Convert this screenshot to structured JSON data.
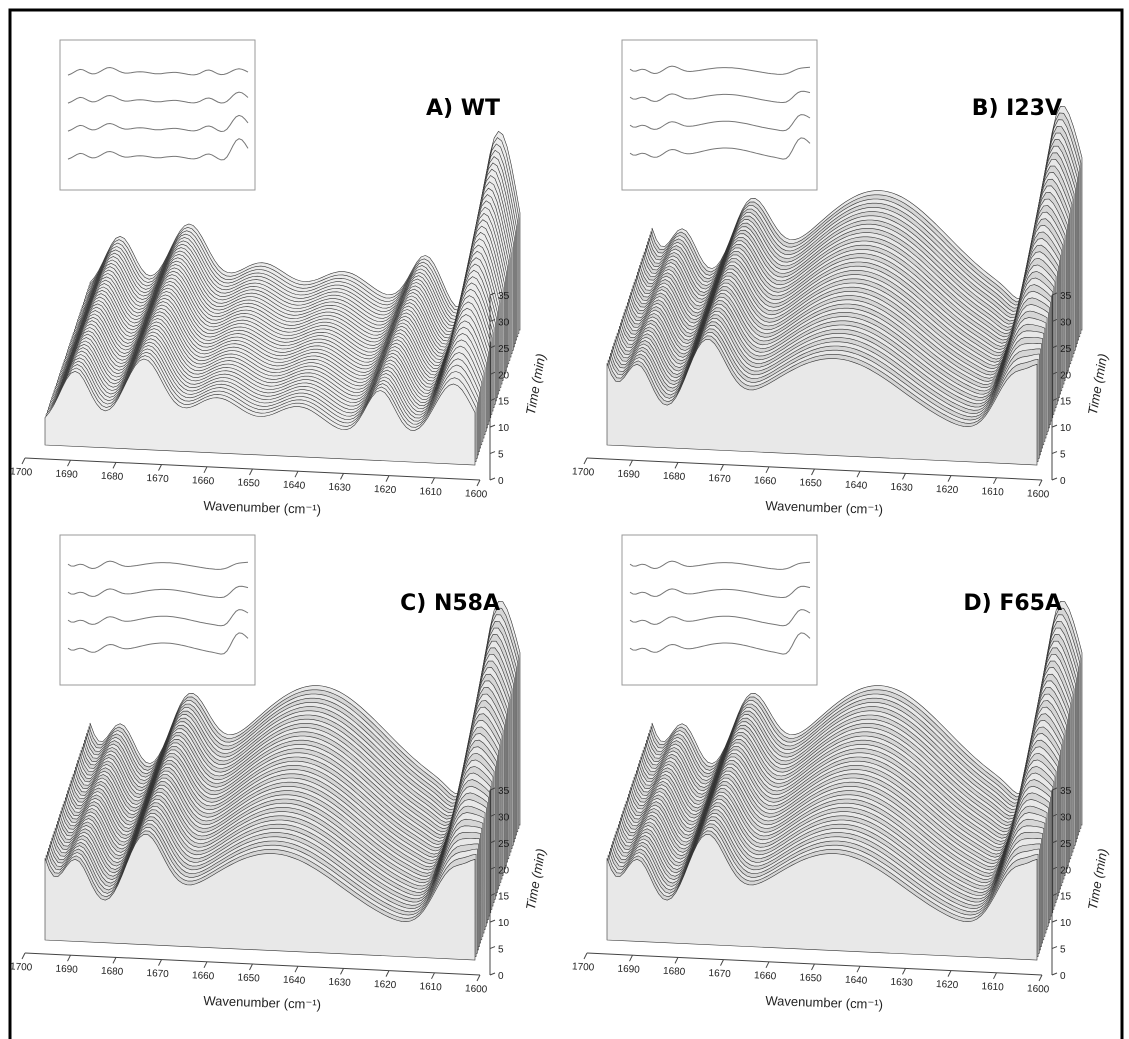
{
  "chart_data": [
    {
      "type": "surface",
      "title": "A) WT",
      "x_label": "Wavenumber (cm⁻¹)",
      "y_label": "Time (min)",
      "xlim": [
        1700,
        1600
      ],
      "xticks": [
        1700,
        1690,
        1680,
        1670,
        1660,
        1650,
        1640,
        1630,
        1620,
        1610,
        1600
      ],
      "ylim": [
        0,
        35
      ],
      "yticks": [
        0,
        5,
        10,
        15,
        20,
        25,
        30,
        35
      ]
    },
    {
      "type": "surface",
      "title": "B) I23V",
      "x_label": "Wavenumber (cm⁻¹)",
      "y_label": "Time (min)",
      "xlim": [
        1700,
        1600
      ],
      "xticks": [
        1700,
        1690,
        1680,
        1670,
        1660,
        1650,
        1640,
        1630,
        1620,
        1610,
        1600
      ],
      "ylim": [
        0,
        35
      ],
      "yticks": [
        0,
        5,
        10,
        15,
        20,
        25,
        30,
        35
      ]
    },
    {
      "type": "surface",
      "title": "C) N58A",
      "x_label": "Wavenumber (cm⁻¹)",
      "y_label": "Time (min)",
      "xlim": [
        1700,
        1600
      ],
      "xticks": [
        1700,
        1690,
        1680,
        1670,
        1660,
        1650,
        1640,
        1630,
        1620,
        1610,
        1600
      ],
      "ylim": [
        0,
        35
      ],
      "yticks": [
        0,
        5,
        10,
        15,
        20,
        25,
        30,
        35
      ]
    },
    {
      "type": "surface",
      "title": "D) F65A",
      "x_label": "Wavenumber (cm⁻¹)",
      "y_label": "Time (min)",
      "xlim": [
        1700,
        1600
      ],
      "xticks": [
        1700,
        1690,
        1680,
        1670,
        1660,
        1650,
        1640,
        1630,
        1620,
        1610,
        1600
      ],
      "ylim": [
        0,
        35
      ],
      "yticks": [
        0,
        5,
        10,
        15,
        20,
        25,
        30,
        35
      ]
    }
  ]
}
